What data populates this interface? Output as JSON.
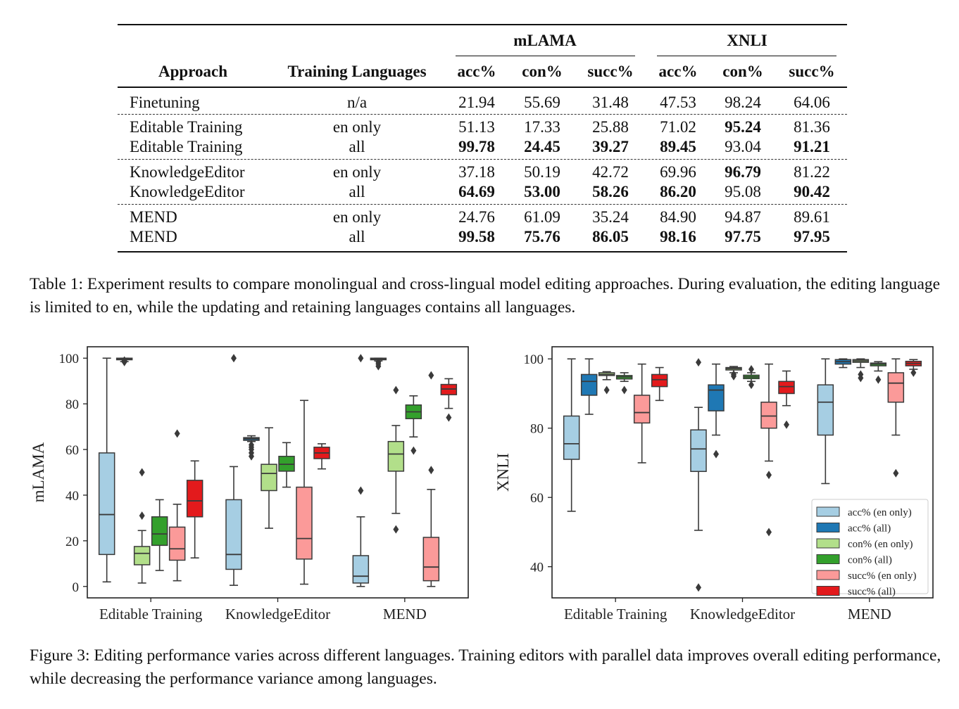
{
  "table": {
    "group_headers": [
      "mLAMA",
      "XNLI"
    ],
    "col_headers": [
      "Approach",
      "Training Languages",
      "acc%",
      "con%",
      "succ%",
      "acc%",
      "con%",
      "succ%"
    ],
    "rows": [
      {
        "approach": "Finetuning",
        "lang": "n/a",
        "values": [
          "21.94",
          "55.69",
          "31.48",
          "47.53",
          "98.24",
          "64.06"
        ],
        "bold": [
          false,
          false,
          false,
          false,
          false,
          false
        ]
      },
      {
        "approach": "Editable Training",
        "lang": "en only",
        "values": [
          "51.13",
          "17.33",
          "25.88",
          "71.02",
          "95.24",
          "81.36"
        ],
        "bold": [
          false,
          false,
          false,
          false,
          true,
          false
        ]
      },
      {
        "approach": "Editable Training",
        "lang": "all",
        "values": [
          "99.78",
          "24.45",
          "39.27",
          "89.45",
          "93.04",
          "91.21"
        ],
        "bold": [
          true,
          true,
          true,
          true,
          false,
          true
        ]
      },
      {
        "approach": "KnowledgeEditor",
        "lang": "en only",
        "values": [
          "37.18",
          "50.19",
          "42.72",
          "69.96",
          "96.79",
          "81.22"
        ],
        "bold": [
          false,
          false,
          false,
          false,
          true,
          false
        ]
      },
      {
        "approach": "KnowledgeEditor",
        "lang": "all",
        "values": [
          "64.69",
          "53.00",
          "58.26",
          "86.20",
          "95.08",
          "90.42"
        ],
        "bold": [
          true,
          true,
          true,
          true,
          false,
          true
        ]
      },
      {
        "approach": "MEND",
        "lang": "en only",
        "values": [
          "24.76",
          "61.09",
          "35.24",
          "84.90",
          "94.87",
          "89.61"
        ],
        "bold": [
          false,
          false,
          false,
          false,
          false,
          false
        ]
      },
      {
        "approach": "MEND",
        "lang": "all",
        "values": [
          "99.58",
          "75.76",
          "86.05",
          "98.16",
          "97.75",
          "97.95"
        ],
        "bold": [
          true,
          true,
          true,
          true,
          true,
          true
        ]
      }
    ]
  },
  "table_caption": "Table 1: Experiment results to compare monolingual and cross-lingual model editing approaches. During evaluation, the editing language is limited to en, while the updating and retaining languages contains all languages.",
  "figure_caption": "Figure 3: Editing performance varies across different languages. Training editors with parallel data improves overall editing performance, while decreasing the performance variance among languages.",
  "colors": {
    "acc_en": "#a6cee3",
    "acc_all": "#1f78b4",
    "con_en": "#b2df8a",
    "con_all": "#33a02c",
    "succ_en": "#fb9a99",
    "succ_all": "#e31a1c"
  },
  "chart_data": [
    {
      "type": "boxplot",
      "ylabel": "mLAMA",
      "ylim": [
        -5,
        105
      ],
      "yticks": [
        "0",
        "20",
        "40",
        "60",
        "80",
        "100"
      ],
      "categories": [
        "Editable Training",
        "KnowledgeEditor",
        "MEND"
      ],
      "series_names": [
        "acc% (en only)",
        "acc% (all)",
        "con% (en only)",
        "con% (all)",
        "succ% (en only)",
        "succ% (all)"
      ],
      "boxes": [
        [
          {
            "min": 2,
            "q1": 14,
            "median": 31.5,
            "q3": 58.5,
            "max": 100,
            "outliers": []
          },
          {
            "min": 98.5,
            "q1": 99.3,
            "median": 99.7,
            "q3": 100,
            "max": 100,
            "outliers": [
              98.3,
              98.8,
              99.0
            ]
          },
          {
            "min": 1.5,
            "q1": 9.5,
            "median": 14.5,
            "q3": 17.5,
            "max": 24.5,
            "outliers": [
              31,
              50
            ]
          },
          {
            "min": 7,
            "q1": 18,
            "median": 23,
            "q3": 30.5,
            "max": 38,
            "outliers": []
          },
          {
            "min": 2.5,
            "q1": 11.5,
            "median": 16.5,
            "q3": 26,
            "max": 36,
            "outliers": [
              67
            ]
          },
          {
            "min": 12.5,
            "q1": 30.5,
            "median": 37.5,
            "q3": 46.5,
            "max": 55,
            "outliers": []
          }
        ],
        [
          {
            "min": 0.5,
            "q1": 7.5,
            "median": 14,
            "q3": 38,
            "max": 52.5,
            "outliers": [
              100
            ]
          },
          {
            "min": 63.5,
            "q1": 64,
            "median": 64.7,
            "q3": 65.2,
            "max": 66,
            "outliers": [
              57,
              58.5,
              60,
              61,
              62
            ]
          },
          {
            "min": 25.5,
            "q1": 42,
            "median": 49.5,
            "q3": 53.5,
            "max": 69.5,
            "outliers": []
          },
          {
            "min": 43.5,
            "q1": 50.5,
            "median": 53.5,
            "q3": 57,
            "max": 63,
            "outliers": []
          },
          {
            "min": 1,
            "q1": 12,
            "median": 21,
            "q3": 43.5,
            "max": 81.5,
            "outliers": []
          },
          {
            "min": 51.5,
            "q1": 56,
            "median": 58.5,
            "q3": 61,
            "max": 62.5,
            "outliers": []
          }
        ],
        [
          {
            "min": 0,
            "q1": 1.5,
            "median": 4.5,
            "q3": 13.5,
            "max": 30.5,
            "outliers": [
              42,
              100
            ]
          },
          {
            "min": 98.8,
            "q1": 99.3,
            "median": 99.6,
            "q3": 100,
            "max": 100,
            "outliers": [
              96.5,
              97.5,
              98.3
            ]
          },
          {
            "min": 32,
            "q1": 50.5,
            "median": 58,
            "q3": 63.5,
            "max": 70.5,
            "outliers": [
              25,
              86
            ]
          },
          {
            "min": 65.5,
            "q1": 73.5,
            "median": 76.5,
            "q3": 79.5,
            "max": 83.5,
            "outliers": [
              59.5
            ]
          },
          {
            "min": 0,
            "q1": 2.5,
            "median": 8.5,
            "q3": 21.5,
            "max": 42.5,
            "outliers": [
              51,
              92.5
            ]
          },
          {
            "min": 78,
            "q1": 84,
            "median": 86.5,
            "q3": 88.5,
            "max": 91,
            "outliers": [
              74
            ]
          }
        ]
      ]
    },
    {
      "type": "boxplot",
      "ylabel": "XNLI",
      "ylim": [
        31,
        103.5
      ],
      "yticks": [
        "40",
        "60",
        "80",
        "100"
      ],
      "categories": [
        "Editable Training",
        "KnowledgeEditor",
        "MEND"
      ],
      "legend": "lower-right",
      "series_names": [
        "acc% (en only)",
        "acc% (all)",
        "con% (en only)",
        "con% (all)",
        "succ% (en only)",
        "succ% (all)"
      ],
      "boxes": [
        [
          {
            "min": 56,
            "q1": 71,
            "median": 75.5,
            "q3": 83.5,
            "max": 100,
            "outliers": []
          },
          {
            "min": 84,
            "q1": 89.5,
            "median": 93.5,
            "q3": 95.5,
            "max": 100,
            "outliers": []
          },
          {
            "min": 94,
            "q1": 95.2,
            "median": 95.5,
            "q3": 96,
            "max": 96.3,
            "outliers": [
              91
            ]
          },
          {
            "min": 93.5,
            "q1": 94.2,
            "median": 94.8,
            "q3": 95.2,
            "max": 96,
            "outliers": [
              91
            ]
          },
          {
            "min": 70,
            "q1": 81.5,
            "median": 84.5,
            "q3": 89.5,
            "max": 98.5,
            "outliers": []
          },
          {
            "min": 88,
            "q1": 92,
            "median": 94,
            "q3": 95.5,
            "max": 97.5,
            "outliers": []
          }
        ],
        [
          {
            "min": 50.5,
            "q1": 67.5,
            "median": 74,
            "q3": 79.5,
            "max": 86,
            "outliers": [
              34,
              99
            ]
          },
          {
            "min": 78,
            "q1": 85,
            "median": 91,
            "q3": 92.5,
            "max": 98.5,
            "outliers": [
              72.5
            ]
          },
          {
            "min": 96,
            "q1": 96.8,
            "median": 97.2,
            "q3": 97.5,
            "max": 97.8,
            "outliers": [
              95,
              95.5
            ]
          },
          {
            "min": 93.5,
            "q1": 94.3,
            "median": 94.8,
            "q3": 95.3,
            "max": 96,
            "outliers": [
              92.5,
              97
            ]
          },
          {
            "min": 70.5,
            "q1": 80,
            "median": 83.5,
            "q3": 87.5,
            "max": 98.5,
            "outliers": [
              50,
              66.5
            ]
          },
          {
            "min": 86.5,
            "q1": 90,
            "median": 92,
            "q3": 93.5,
            "max": 96.5,
            "outliers": [
              81
            ]
          }
        ],
        [
          {
            "min": 64,
            "q1": 78,
            "median": 87.5,
            "q3": 92.5,
            "max": 100,
            "outliers": []
          },
          {
            "min": 97.5,
            "q1": 98.5,
            "median": 99.2,
            "q3": 99.8,
            "max": 100,
            "outliers": []
          },
          {
            "min": 97.5,
            "q1": 99,
            "median": 99.4,
            "q3": 99.8,
            "max": 100,
            "outliers": [
              94.5,
              95.5
            ]
          },
          {
            "min": 96.5,
            "q1": 98,
            "median": 98.5,
            "q3": 98.8,
            "max": 99.2,
            "outliers": [
              94
            ]
          },
          {
            "min": 78,
            "q1": 87.5,
            "median": 93,
            "q3": 96,
            "max": 100,
            "outliers": [
              67
            ]
          },
          {
            "min": 97,
            "q1": 98,
            "median": 98.7,
            "q3": 99.3,
            "max": 99.8,
            "outliers": [
              96
            ]
          }
        ]
      ]
    }
  ]
}
